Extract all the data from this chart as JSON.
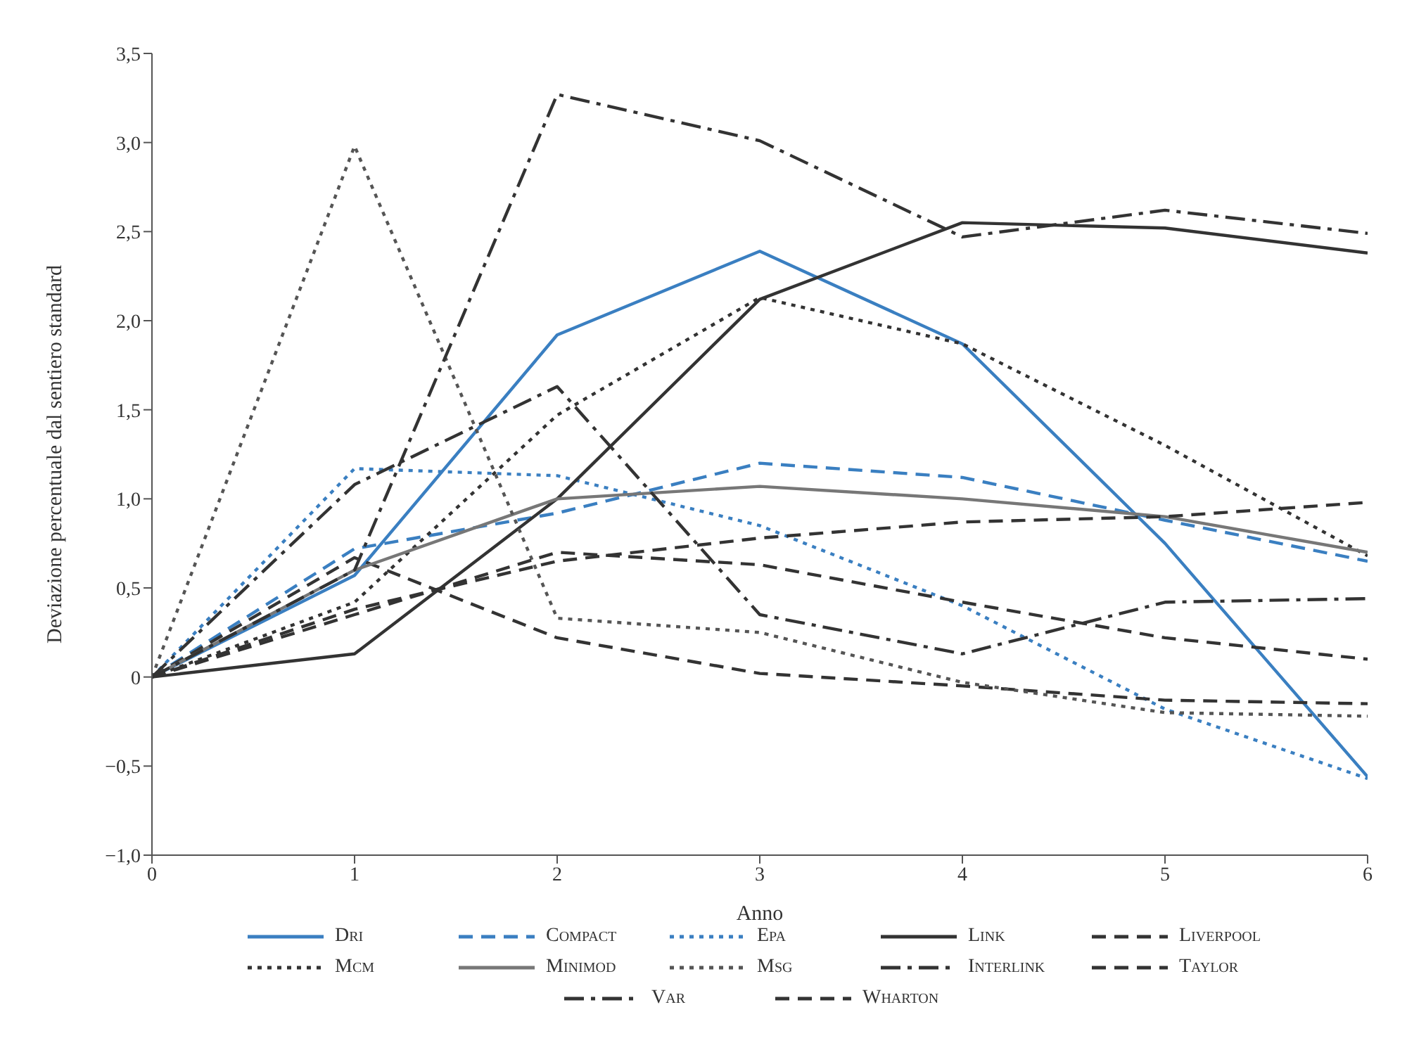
{
  "chart_data": {
    "type": "line",
    "xlabel": "Anno",
    "ylabel": "Deviazione percentuale dal sentiero standard",
    "x": [
      0,
      1,
      2,
      3,
      4,
      5,
      6
    ],
    "xlim": [
      0,
      6
    ],
    "xticks": [
      0,
      1,
      2,
      3,
      4,
      5,
      6
    ],
    "ylim": [
      -1,
      3.5
    ],
    "yticks": [
      {
        "value": -1,
        "label": "−1,0"
      },
      {
        "value": -0.5,
        "label": "−0,5"
      },
      0,
      {
        "value": 0.5,
        "label": "0,5"
      },
      {
        "value": 1,
        "label": "1,0"
      },
      {
        "value": 1.5,
        "label": "1,5"
      },
      {
        "value": 2,
        "label": "2,0"
      },
      {
        "value": 2.5,
        "label": "2,5"
      },
      {
        "value": 3,
        "label": "3,0"
      },
      {
        "value": 3.5,
        "label": "3,5"
      }
    ],
    "grid": false,
    "legend": "bottom",
    "marker": "none",
    "series": [
      {
        "name": "Dri",
        "color": "#3a7fc1",
        "line_style": "solid",
        "values": [
          0,
          0.57,
          1.92,
          2.39,
          1.87,
          0.75,
          -0.56
        ]
      },
      {
        "name": "Compact",
        "color": "#3a7fc1",
        "line_style": "dashed",
        "values": [
          0,
          0.72,
          0.92,
          1.2,
          1.12,
          0.88,
          0.65
        ]
      },
      {
        "name": "Epa",
        "color": "#3a7fc1",
        "line_style": "dotted",
        "values": [
          0,
          1.17,
          1.13,
          0.85,
          0.4,
          -0.18,
          -0.57
        ]
      },
      {
        "name": "Link",
        "color": "#333333",
        "line_style": "solid",
        "values": [
          0,
          0.13,
          1.0,
          2.12,
          2.55,
          2.52,
          2.38
        ]
      },
      {
        "name": "Liverpool",
        "color": "#333333",
        "line_style": "dashed",
        "values": [
          0,
          0.67,
          0.22,
          0.02,
          -0.05,
          -0.13,
          -0.15
        ]
      },
      {
        "name": "Mcm",
        "color": "#333333",
        "line_style": "dotted",
        "values": [
          0,
          0.42,
          1.47,
          2.13,
          1.87,
          1.3,
          0.68
        ]
      },
      {
        "name": "Minimod",
        "color": "#777777",
        "line_style": "solid",
        "values": [
          0,
          0.6,
          1.0,
          1.07,
          1.0,
          0.9,
          0.7
        ]
      },
      {
        "name": "Msg",
        "color": "#555555",
        "line_style": "dotted",
        "values": [
          0,
          2.98,
          0.33,
          0.25,
          -0.03,
          -0.2,
          -0.22
        ]
      },
      {
        "name": "Interlink",
        "color": "#333333",
        "line_style": "dashdot",
        "values": [
          0,
          1.08,
          1.63,
          0.35,
          0.13,
          0.42,
          0.44
        ]
      },
      {
        "name": "Taylor",
        "color": "#333333",
        "line_style": "dashed",
        "values": [
          0,
          0.35,
          0.7,
          0.63,
          0.42,
          0.22,
          0.1
        ]
      },
      {
        "name": "Var",
        "color": "#333333",
        "line_style": "dashdot",
        "values": [
          0,
          0.6,
          3.27,
          3.01,
          2.47,
          2.62,
          2.49
        ]
      },
      {
        "name": "Wharton",
        "color": "#333333",
        "line_style": "dashed",
        "values": [
          0,
          0.38,
          0.65,
          0.78,
          0.87,
          0.9,
          0.98
        ]
      }
    ]
  }
}
